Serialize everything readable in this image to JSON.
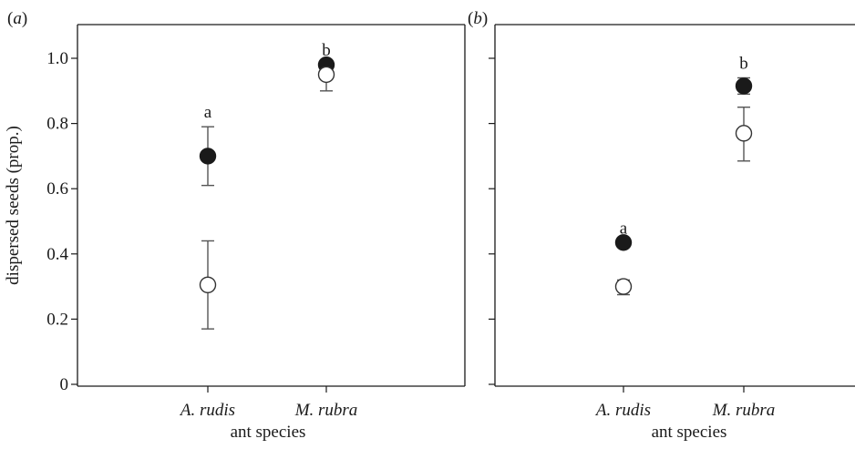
{
  "chart_data": [
    {
      "type": "scatter",
      "panel_label": "(a)",
      "panel_label_italic": "a",
      "xlabel": "ant species",
      "ylabel": "dispersed seeds (prop.)",
      "categories": [
        "A. rudis",
        "M. rubra"
      ],
      "ylim": [
        0,
        1.1
      ],
      "yticks": [
        "0",
        "0.2",
        "0.4",
        "0.6",
        "0.8",
        "1.0"
      ],
      "show_y_tick_labels": true,
      "frame": "full box",
      "grid": false,
      "series": [
        {
          "marker": "filled circle",
          "color": "#1a1a1a",
          "values": [
            0.7,
            0.98
          ],
          "err_low": [
            0.61,
            0.98
          ],
          "err_high": [
            0.79,
            0.98
          ]
        },
        {
          "marker": "open circle",
          "color": "#ffffff",
          "values": [
            0.305,
            0.95
          ],
          "err_low": [
            0.17,
            0.9
          ],
          "err_high": [
            0.44,
            0.95
          ]
        }
      ],
      "annotations": [
        "a",
        "b"
      ]
    },
    {
      "type": "scatter",
      "panel_label": "(b)",
      "panel_label_italic": "b",
      "xlabel": "ant species",
      "ylabel": "",
      "categories": [
        "A. rudis",
        "M. rubra"
      ],
      "ylim": [
        0,
        1.1
      ],
      "yticks": [
        "0",
        "0.2",
        "0.4",
        "0.6",
        "0.8",
        "1.0"
      ],
      "show_y_tick_labels": false,
      "frame": "left, top and bottom",
      "grid": false,
      "series": [
        {
          "marker": "filled circle",
          "color": "#1a1a1a",
          "values": [
            0.435,
            0.915
          ],
          "err_low": [
            0.435,
            0.89
          ],
          "err_high": [
            0.435,
            0.94
          ]
        },
        {
          "marker": "open circle",
          "color": "#ffffff",
          "values": [
            0.3,
            0.77
          ],
          "err_low": [
            0.275,
            0.685
          ],
          "err_high": [
            0.32,
            0.85
          ]
        }
      ],
      "annotations": [
        "a",
        "b"
      ]
    }
  ]
}
